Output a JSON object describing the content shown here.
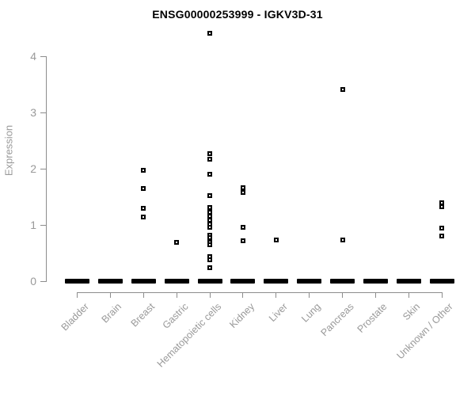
{
  "window": {
    "title": "ENSG00000253999 - IGKV3D-31"
  },
  "chart_data": {
    "type": "scatter",
    "variant": "strip-plot",
    "title": "ENSG00000253999 - IGKV3D-31",
    "xlabel": "",
    "ylabel": "Expression",
    "ylim": [
      0,
      4.5
    ],
    "yticks": [
      0,
      1,
      2,
      3,
      4
    ],
    "grid": false,
    "legend_position": "none",
    "marker": "open-square",
    "marker_color": "#000000",
    "axis_color": "#8c8c8c",
    "tick_label_color": "#999999",
    "title_color": "#000000",
    "categories": [
      "Bladder",
      "Brain",
      "Breast",
      "Gastric",
      "Hematopoietic cells",
      "Kidney",
      "Liver",
      "Lung",
      "Pancreas",
      "Prostate",
      "Skin",
      "Unknown / Other"
    ],
    "series": [
      {
        "category": "Bladder",
        "zero_cluster": true,
        "values": []
      },
      {
        "category": "Brain",
        "zero_cluster": true,
        "values": []
      },
      {
        "category": "Breast",
        "zero_cluster": true,
        "values": [
          1.97,
          1.65,
          1.3,
          1.14
        ]
      },
      {
        "category": "Gastric",
        "zero_cluster": true,
        "values": [
          0.69
        ]
      },
      {
        "category": "Hematopoietic cells",
        "zero_cluster": true,
        "values": [
          4.41,
          2.27,
          2.17,
          1.9,
          1.52,
          1.31,
          1.23,
          1.15,
          1.08,
          1.01,
          0.96,
          0.82,
          0.77,
          0.69,
          0.65,
          0.44,
          0.38,
          0.24
        ]
      },
      {
        "category": "Kidney",
        "zero_cluster": true,
        "values": [
          1.66,
          1.58,
          0.96,
          0.72
        ]
      },
      {
        "category": "Liver",
        "zero_cluster": true,
        "values": [
          0.73
        ]
      },
      {
        "category": "Lung",
        "zero_cluster": true,
        "values": []
      },
      {
        "category": "Pancreas",
        "zero_cluster": true,
        "values": [
          3.41,
          0.73
        ]
      },
      {
        "category": "Prostate",
        "zero_cluster": true,
        "values": []
      },
      {
        "category": "Skin",
        "zero_cluster": true,
        "values": []
      },
      {
        "category": "Unknown / Other",
        "zero_cluster": true,
        "values": [
          1.39,
          1.32,
          0.94,
          0.8
        ]
      }
    ]
  }
}
